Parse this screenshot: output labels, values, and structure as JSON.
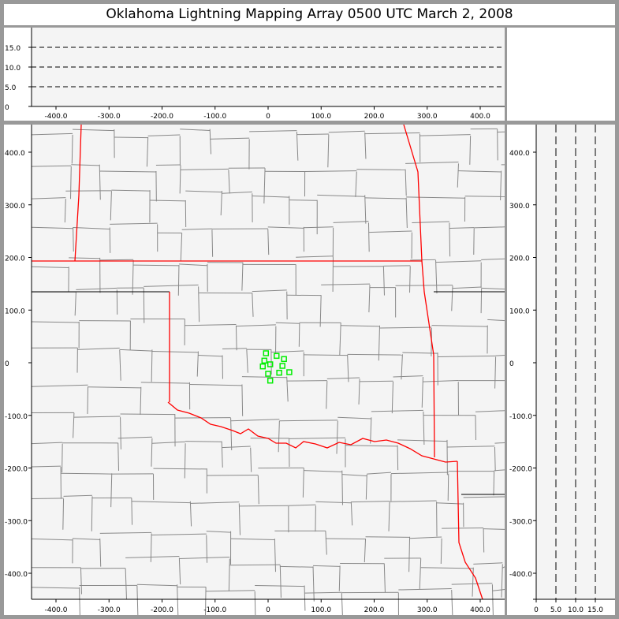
{
  "title": "Oklahoma Lightning Mapping Array   0500 UTC  March 2, 2008",
  "colors": {
    "background": "#999999",
    "plot_bg": "#f4f4f4",
    "state_border": "#ff0000",
    "county_line": "#888888",
    "source_marker": "#00ee00"
  },
  "top_panel": {
    "x_ticks": [
      "-400.0",
      "-300.0",
      "-200.0",
      "-100.0",
      "0",
      "100.0",
      "200.0",
      "300.0",
      "400.0"
    ],
    "y_ticks": [
      "0",
      "5.0",
      "10.0",
      "15.0"
    ],
    "x_tick_values": [
      -400,
      -300,
      -200,
      -100,
      0,
      100,
      200,
      300,
      400
    ],
    "y_tick_values": [
      0,
      5,
      10,
      15
    ],
    "xlim": [
      -450,
      450
    ],
    "ylim": [
      0,
      20
    ]
  },
  "map_panel": {
    "x_ticks": [
      "-400.0",
      "-300.0",
      "-200.0",
      "-100.0",
      "0",
      "100.0",
      "200.0",
      "300.0",
      "400.0"
    ],
    "y_ticks": [
      "400.0",
      "300.0",
      "200.0",
      "100.0",
      "0",
      "-100.0",
      "-200.0",
      "-300.0",
      "-400.0"
    ],
    "x_tick_values": [
      -400,
      -300,
      -200,
      -100,
      0,
      100,
      200,
      300,
      400
    ],
    "y_tick_values": [
      400,
      300,
      200,
      100,
      0,
      -100,
      -200,
      -300,
      -400
    ],
    "xlim": [
      -450,
      450
    ],
    "ylim": [
      -450,
      450
    ],
    "sources": [
      {
        "x": -4,
        "y": 18
      },
      {
        "x": -7,
        "y": 4
      },
      {
        "x": 16,
        "y": 13
      },
      {
        "x": 30,
        "y": 7
      },
      {
        "x": -10,
        "y": -7
      },
      {
        "x": 4,
        "y": -3
      },
      {
        "x": 27,
        "y": -6
      },
      {
        "x": 0,
        "y": -21
      },
      {
        "x": 21,
        "y": -19
      },
      {
        "x": 40,
        "y": -18
      },
      {
        "x": 4,
        "y": -34
      }
    ]
  },
  "side_panel": {
    "x_ticks": [
      "0",
      "5.0",
      "10.0",
      "15.0"
    ],
    "x_tick_values": [
      0,
      5,
      10,
      15
    ],
    "xlim": [
      0,
      20
    ]
  }
}
